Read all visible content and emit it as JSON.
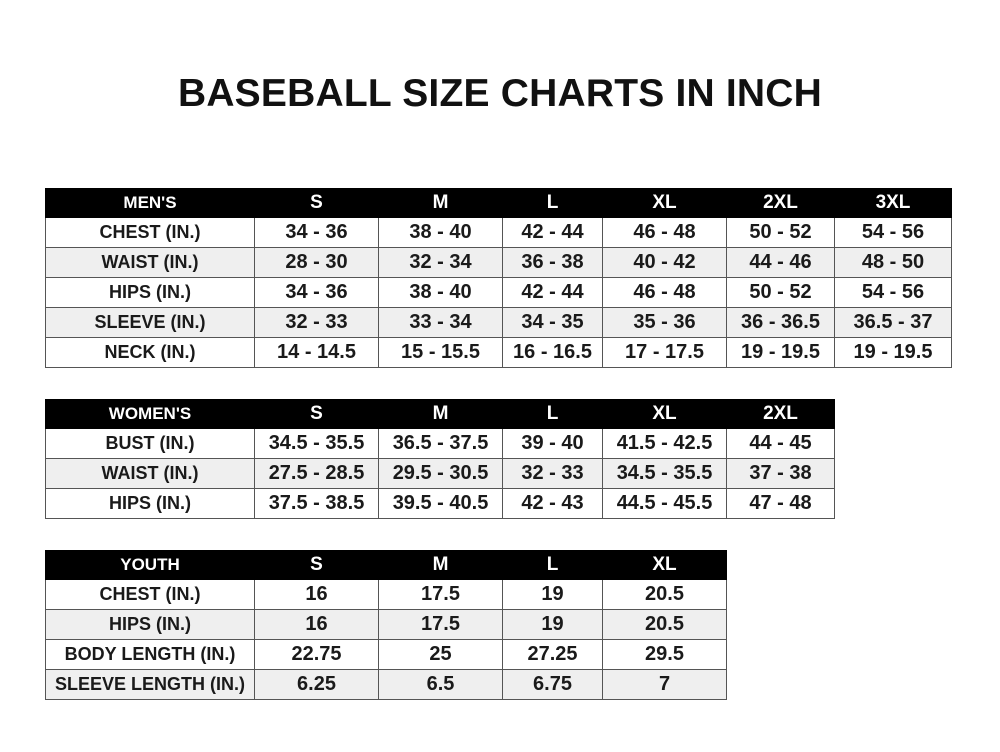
{
  "title": "BASEBALL SIZE CHARTS IN INCH",
  "tables": [
    {
      "id": "men",
      "header": [
        "MEN'S",
        "S",
        "M",
        "L",
        "XL",
        "2XL",
        "3XL"
      ],
      "rows": [
        [
          "CHEST (IN.)",
          "34 - 36",
          "38 - 40",
          "42 - 44",
          "46 - 48",
          "50 - 52",
          "54 - 56"
        ],
        [
          "WAIST (IN.)",
          "28 - 30",
          "32 - 34",
          "36 - 38",
          "40 - 42",
          "44 - 46",
          "48 - 50"
        ],
        [
          "HIPS (IN.)",
          "34 - 36",
          "38 - 40",
          "42 - 44",
          "46 - 48",
          "50 - 52",
          "54 - 56"
        ],
        [
          "SLEEVE (IN.)",
          "32 - 33",
          "33 - 34",
          "34 - 35",
          "35 - 36",
          "36 - 36.5",
          "36.5 - 37"
        ],
        [
          "NECK (IN.)",
          "14 - 14.5",
          "15 - 15.5",
          "16 - 16.5",
          "17 - 17.5",
          "19 - 19.5",
          "19 - 19.5"
        ]
      ]
    },
    {
      "id": "women",
      "header": [
        "WOMEN'S",
        "S",
        "M",
        "L",
        "XL",
        "2XL"
      ],
      "rows": [
        [
          "BUST (IN.)",
          "34.5 - 35.5",
          "36.5 - 37.5",
          "39 - 40",
          "41.5 - 42.5",
          "44 - 45"
        ],
        [
          "WAIST (IN.)",
          "27.5 - 28.5",
          "29.5 - 30.5",
          "32 - 33",
          "34.5 - 35.5",
          "37 - 38"
        ],
        [
          "HIPS (IN.)",
          "37.5 - 38.5",
          "39.5 - 40.5",
          "42 - 43",
          "44.5 - 45.5",
          "47 - 48"
        ]
      ]
    },
    {
      "id": "youth",
      "header": [
        "YOUTH",
        "S",
        "M",
        "L",
        "XL"
      ],
      "rows": [
        [
          "CHEST (IN.)",
          "16",
          "17.5",
          "19",
          "20.5"
        ],
        [
          "HIPS (IN.)",
          "16",
          "17.5",
          "19",
          "20.5"
        ],
        [
          "BODY LENGTH (IN.)",
          "22.75",
          "25",
          "27.25",
          "29.5"
        ],
        [
          "SLEEVE LENGTH (IN.)",
          "6.25",
          "6.5",
          "6.75",
          "7"
        ]
      ]
    }
  ],
  "colors": {
    "header_bg": "#000000",
    "header_text": "#ffffff",
    "alt_row": "#efefef",
    "border": "#555555"
  }
}
